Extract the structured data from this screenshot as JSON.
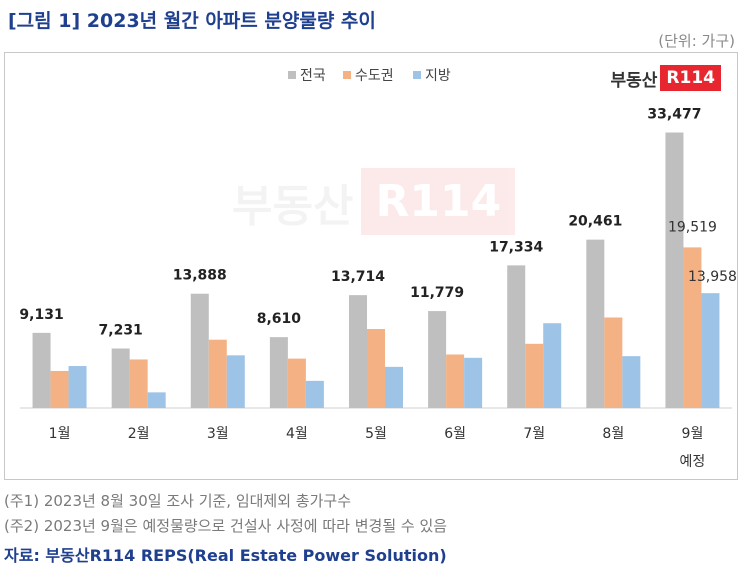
{
  "title": "[그림 1] 2023년 월간 아파트 분양물량 추이",
  "unit_note": "(단위: 가구)",
  "logo": {
    "text": "부동산",
    "badge": "R114"
  },
  "notes": [
    "(주1) 2023년 8월 30일 조사 기준, 임대제외 총가구수",
    "(주2) 2023년 9월은 예정물량으로 건설사 사정에 따라 변경될 수 있음"
  ],
  "source": "자료: 부동산R114 REPS(Real Estate Power Solution)",
  "colors": {
    "national": "#bfbfbf",
    "capital": "#f4b183",
    "local": "#9dc3e6",
    "title": "#1f3f8f",
    "logo_red": "#e8262f"
  },
  "chart_data": {
    "type": "bar",
    "title": "",
    "xlabel": "",
    "ylabel": "",
    "ylim": [
      0,
      35000
    ],
    "grid": false,
    "legend_position": "top-center",
    "categories": [
      "1월",
      "2월",
      "3월",
      "4월",
      "5월",
      "6월",
      "7월",
      "8월",
      "9월"
    ],
    "category_sublabels": [
      "",
      "",
      "",
      "",
      "",
      "",
      "",
      "",
      "예정"
    ],
    "series": [
      {
        "name": "전국",
        "values": [
          9131,
          7231,
          13888,
          8610,
          13714,
          11779,
          17334,
          20461,
          33477
        ]
      },
      {
        "name": "수도권",
        "values": [
          4500,
          5900,
          8300,
          6000,
          9600,
          6500,
          7800,
          11000,
          19519
        ]
      },
      {
        "name": "지방",
        "values": [
          5100,
          1900,
          6400,
          3300,
          5000,
          6100,
          10300,
          6300,
          13958
        ]
      }
    ],
    "data_labels": {
      "national": [
        "9,131",
        "7,231",
        "13,888",
        "8,610",
        "13,714",
        "11,779",
        "17,334",
        "20,461",
        "33,477"
      ],
      "last_capital": "19,519",
      "last_local": "13,958"
    }
  }
}
